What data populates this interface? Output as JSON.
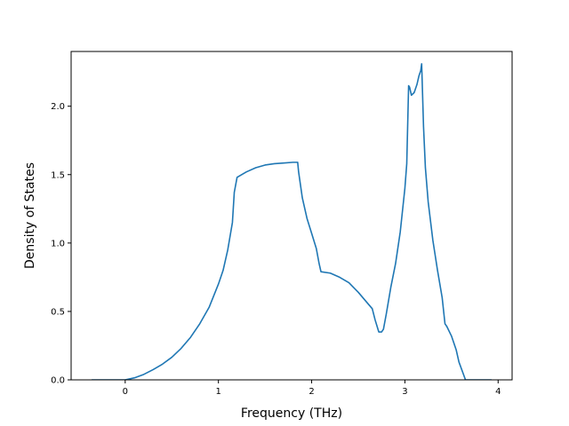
{
  "chart_data": {
    "type": "line",
    "title": "",
    "xlabel": "Frequency (THz)",
    "ylabel": "Density of States",
    "xlim": [
      -0.58,
      4.15
    ],
    "ylim": [
      0.0,
      2.4
    ],
    "xticks": [
      0,
      1,
      2,
      3,
      4
    ],
    "yticks": [
      0.0,
      0.5,
      1.0,
      1.5,
      2.0
    ],
    "xtick_labels": [
      "0",
      "1",
      "2",
      "3",
      "4"
    ],
    "ytick_labels": [
      "0.0",
      "0.5",
      "1.0",
      "1.5",
      "2.0"
    ],
    "grid": false,
    "legend": "none",
    "line_color": "#1f77b4",
    "series": [
      {
        "x": [
          -0.36,
          -0.2,
          0.0,
          0.1,
          0.2,
          0.3,
          0.4,
          0.5,
          0.6,
          0.7,
          0.8,
          0.9,
          1.0,
          1.05,
          1.1,
          1.13,
          1.15,
          1.17,
          1.2,
          1.3,
          1.4,
          1.5,
          1.6,
          1.7,
          1.8,
          1.85,
          1.86,
          1.9,
          1.95,
          2.0,
          2.05,
          2.08,
          2.1,
          2.2,
          2.3,
          2.4,
          2.5,
          2.6,
          2.65,
          2.68,
          2.72,
          2.75,
          2.77,
          2.8,
          2.85,
          2.9,
          2.95,
          3.0,
          3.02,
          3.04,
          3.05,
          3.07,
          3.1,
          3.13,
          3.15,
          3.17,
          3.18,
          3.2,
          3.22,
          3.25,
          3.3,
          3.35,
          3.4,
          3.43,
          3.45,
          3.5,
          3.55,
          3.58,
          3.65,
          3.75,
          3.93
        ],
        "y": [
          0.0,
          0.0,
          0.0,
          0.015,
          0.04,
          0.075,
          0.115,
          0.165,
          0.23,
          0.31,
          0.41,
          0.53,
          0.7,
          0.8,
          0.95,
          1.07,
          1.15,
          1.37,
          1.48,
          1.52,
          1.55,
          1.57,
          1.58,
          1.585,
          1.59,
          1.59,
          1.52,
          1.33,
          1.18,
          1.07,
          0.96,
          0.85,
          0.79,
          0.78,
          0.75,
          0.71,
          0.64,
          0.56,
          0.52,
          0.44,
          0.35,
          0.35,
          0.37,
          0.48,
          0.68,
          0.85,
          1.08,
          1.4,
          1.58,
          2.15,
          2.14,
          2.08,
          2.1,
          2.16,
          2.22,
          2.26,
          2.31,
          1.85,
          1.55,
          1.3,
          1.02,
          0.8,
          0.6,
          0.41,
          0.39,
          0.32,
          0.22,
          0.13,
          0.0,
          0.0,
          0.0
        ]
      }
    ]
  }
}
